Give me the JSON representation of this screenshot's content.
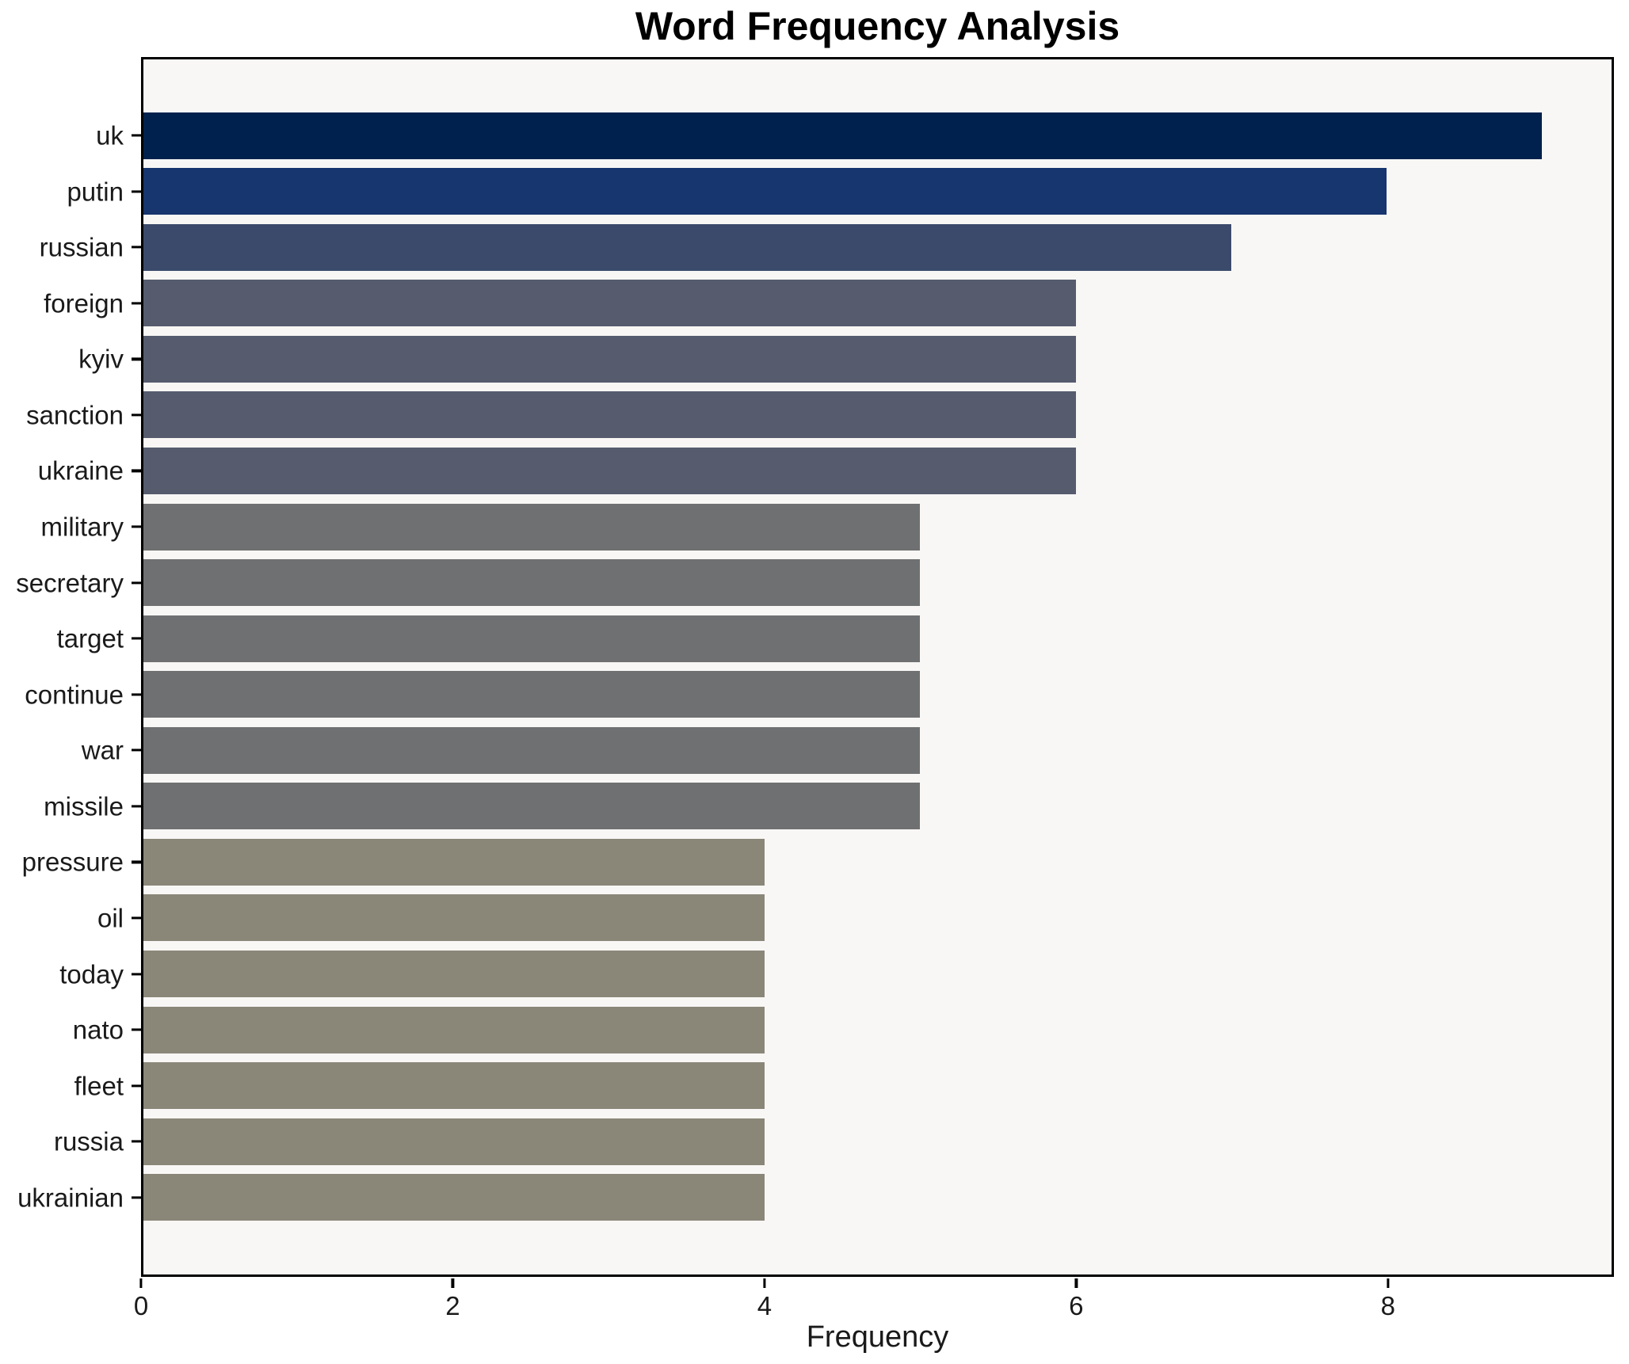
{
  "title": "Word Frequency Analysis",
  "chart_data": {
    "type": "bar",
    "orientation": "horizontal",
    "title": "Word Frequency Analysis",
    "xlabel": "Frequency",
    "ylabel": "",
    "categories": [
      "uk",
      "putin",
      "russian",
      "foreign",
      "kyiv",
      "sanction",
      "ukraine",
      "military",
      "secretary",
      "target",
      "continue",
      "war",
      "missile",
      "pressure",
      "oil",
      "today",
      "nato",
      "fleet",
      "russia",
      "ukrainian"
    ],
    "values": [
      9,
      8,
      7,
      6,
      6,
      6,
      6,
      5,
      5,
      5,
      5,
      5,
      5,
      4,
      4,
      4,
      4,
      4,
      4,
      4
    ],
    "bar_colors": [
      "#00214d",
      "#17356f",
      "#3b4a6b",
      "#565c6e",
      "#565c6e",
      "#565c6e",
      "#565c6e",
      "#6f7071",
      "#6f7071",
      "#6f7071",
      "#6f7071",
      "#6f7071",
      "#6f7071",
      "#8a8779",
      "#8a8779",
      "#8a8779",
      "#8a8779",
      "#8a8779",
      "#8a8779",
      "#8a8779"
    ],
    "x_ticks": [
      0,
      2,
      4,
      6,
      8
    ],
    "xlim": [
      0,
      9.45
    ],
    "grid": false,
    "legend": "none",
    "plot_background": "#f8f7f5",
    "figure_background": "#ffffff",
    "spine_color": "#000000"
  }
}
